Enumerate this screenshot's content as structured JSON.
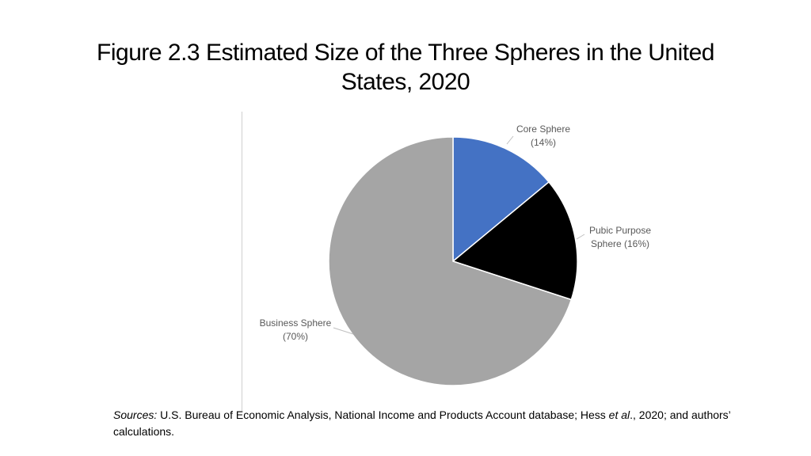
{
  "slide": {
    "title_line1": "Figure 2.3 Estimated Size of the Three Spheres in the United",
    "title_line2": "States, 2020"
  },
  "sources": {
    "label": "Sources:",
    "text_a": " U.S. Bureau of Economic Analysis, National Income and Products Account database; Hess ",
    "etal": "et al",
    "text_b": "., 2020; and authors’ calculations."
  },
  "chart_data": {
    "type": "pie",
    "title": "",
    "slices": [
      {
        "label_line1": "Core Sphere",
        "label_line2": "(14%)",
        "value": 14,
        "color": "#4472c4"
      },
      {
        "label_line1": "Pubic Purpose",
        "label_line2": "Sphere (16%)",
        "value": 16,
        "color": "#000000"
      },
      {
        "label_line1": "Business Sphere",
        "label_line2": "(70%)",
        "value": 70,
        "color": "#a5a5a5"
      }
    ],
    "start_angle": "12 o'clock",
    "direction": "clockwise",
    "legend": "none",
    "label_color": "#595959"
  }
}
